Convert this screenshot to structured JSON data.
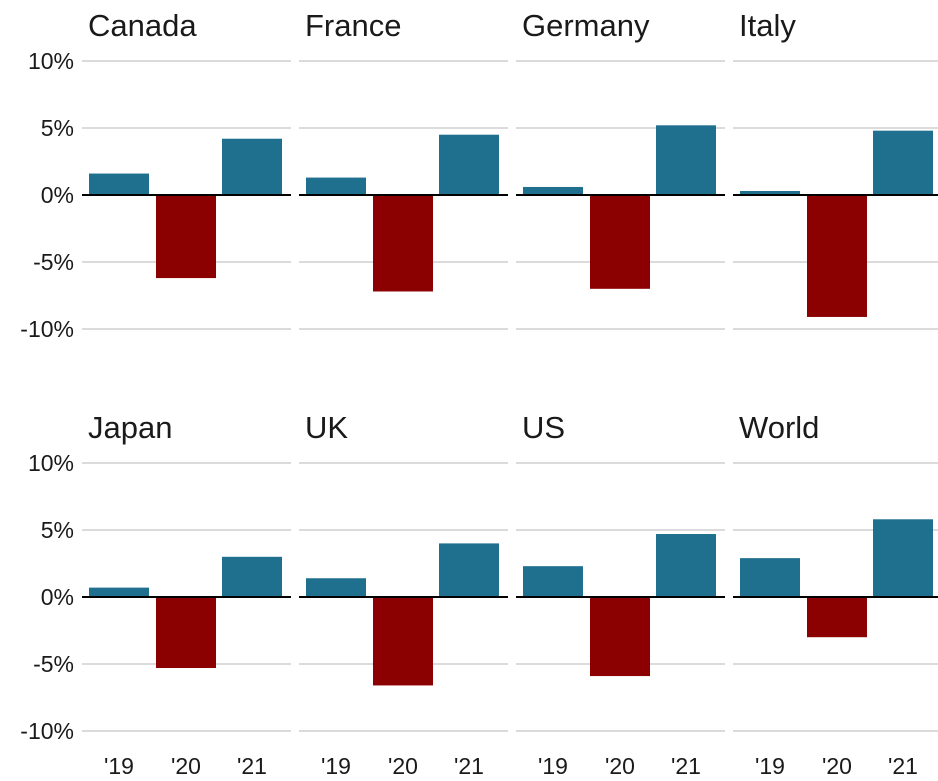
{
  "chart_data": {
    "type": "bar",
    "layout": "small-multiples",
    "categories": [
      "'19",
      "'20",
      "'21"
    ],
    "y_ticks": [
      10,
      5,
      0,
      -5,
      -10
    ],
    "y_tick_labels": [
      "10%",
      "5%",
      "0%",
      "-5%",
      "-10%"
    ],
    "ylim": [
      -10,
      10
    ],
    "grid": true,
    "colors": {
      "positive": "#1f6f8f",
      "negative": "#8b0000"
    },
    "panels": [
      {
        "title": "Canada",
        "values": [
          1.6,
          -6.2,
          4.2
        ]
      },
      {
        "title": "France",
        "values": [
          1.3,
          -7.2,
          4.5
        ]
      },
      {
        "title": "Germany",
        "values": [
          0.6,
          -7.0,
          5.2
        ]
      },
      {
        "title": "Italy",
        "values": [
          0.3,
          -9.1,
          4.8
        ]
      },
      {
        "title": "Japan",
        "values": [
          0.7,
          -5.3,
          3.0
        ]
      },
      {
        "title": "UK",
        "values": [
          1.4,
          -6.6,
          4.0
        ]
      },
      {
        "title": "US",
        "values": [
          2.3,
          -5.9,
          4.7
        ]
      },
      {
        "title": "World",
        "values": [
          2.9,
          -3.0,
          5.8
        ]
      }
    ]
  }
}
